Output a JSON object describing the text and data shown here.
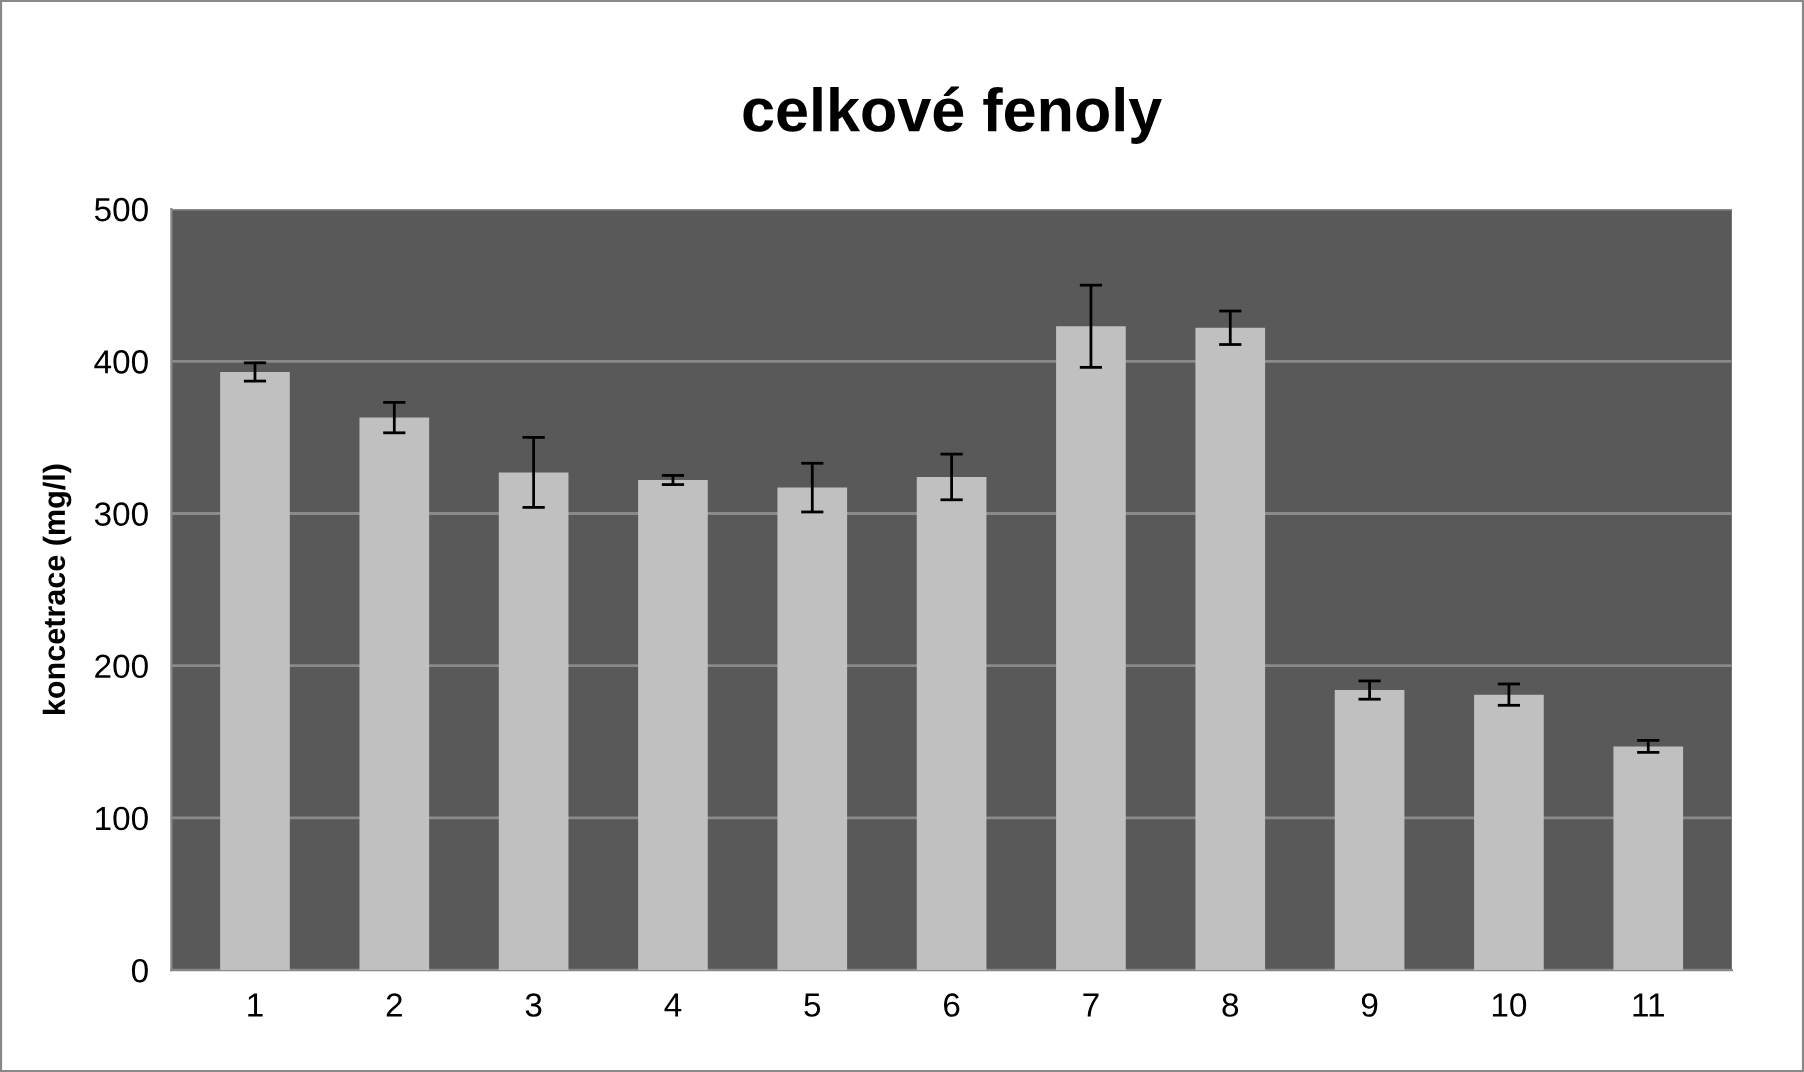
{
  "chart_data": {
    "type": "bar",
    "title": "celkové fenoly",
    "ylabel": "koncetrace (mg/l)",
    "categories": [
      "1",
      "2",
      "3",
      "4",
      "5",
      "6",
      "7",
      "8",
      "9",
      "10",
      "11"
    ],
    "values": [
      393,
      363,
      327,
      322,
      317,
      324,
      423,
      422,
      184,
      181,
      147
    ],
    "errors": [
      6,
      10,
      23,
      3,
      16,
      15,
      27,
      11,
      6,
      7,
      4
    ],
    "color": "#c0c0c0",
    "ylim": [
      0,
      500
    ],
    "yticks": [
      0,
      100,
      200,
      300,
      400,
      500
    ],
    "grid": "y"
  }
}
